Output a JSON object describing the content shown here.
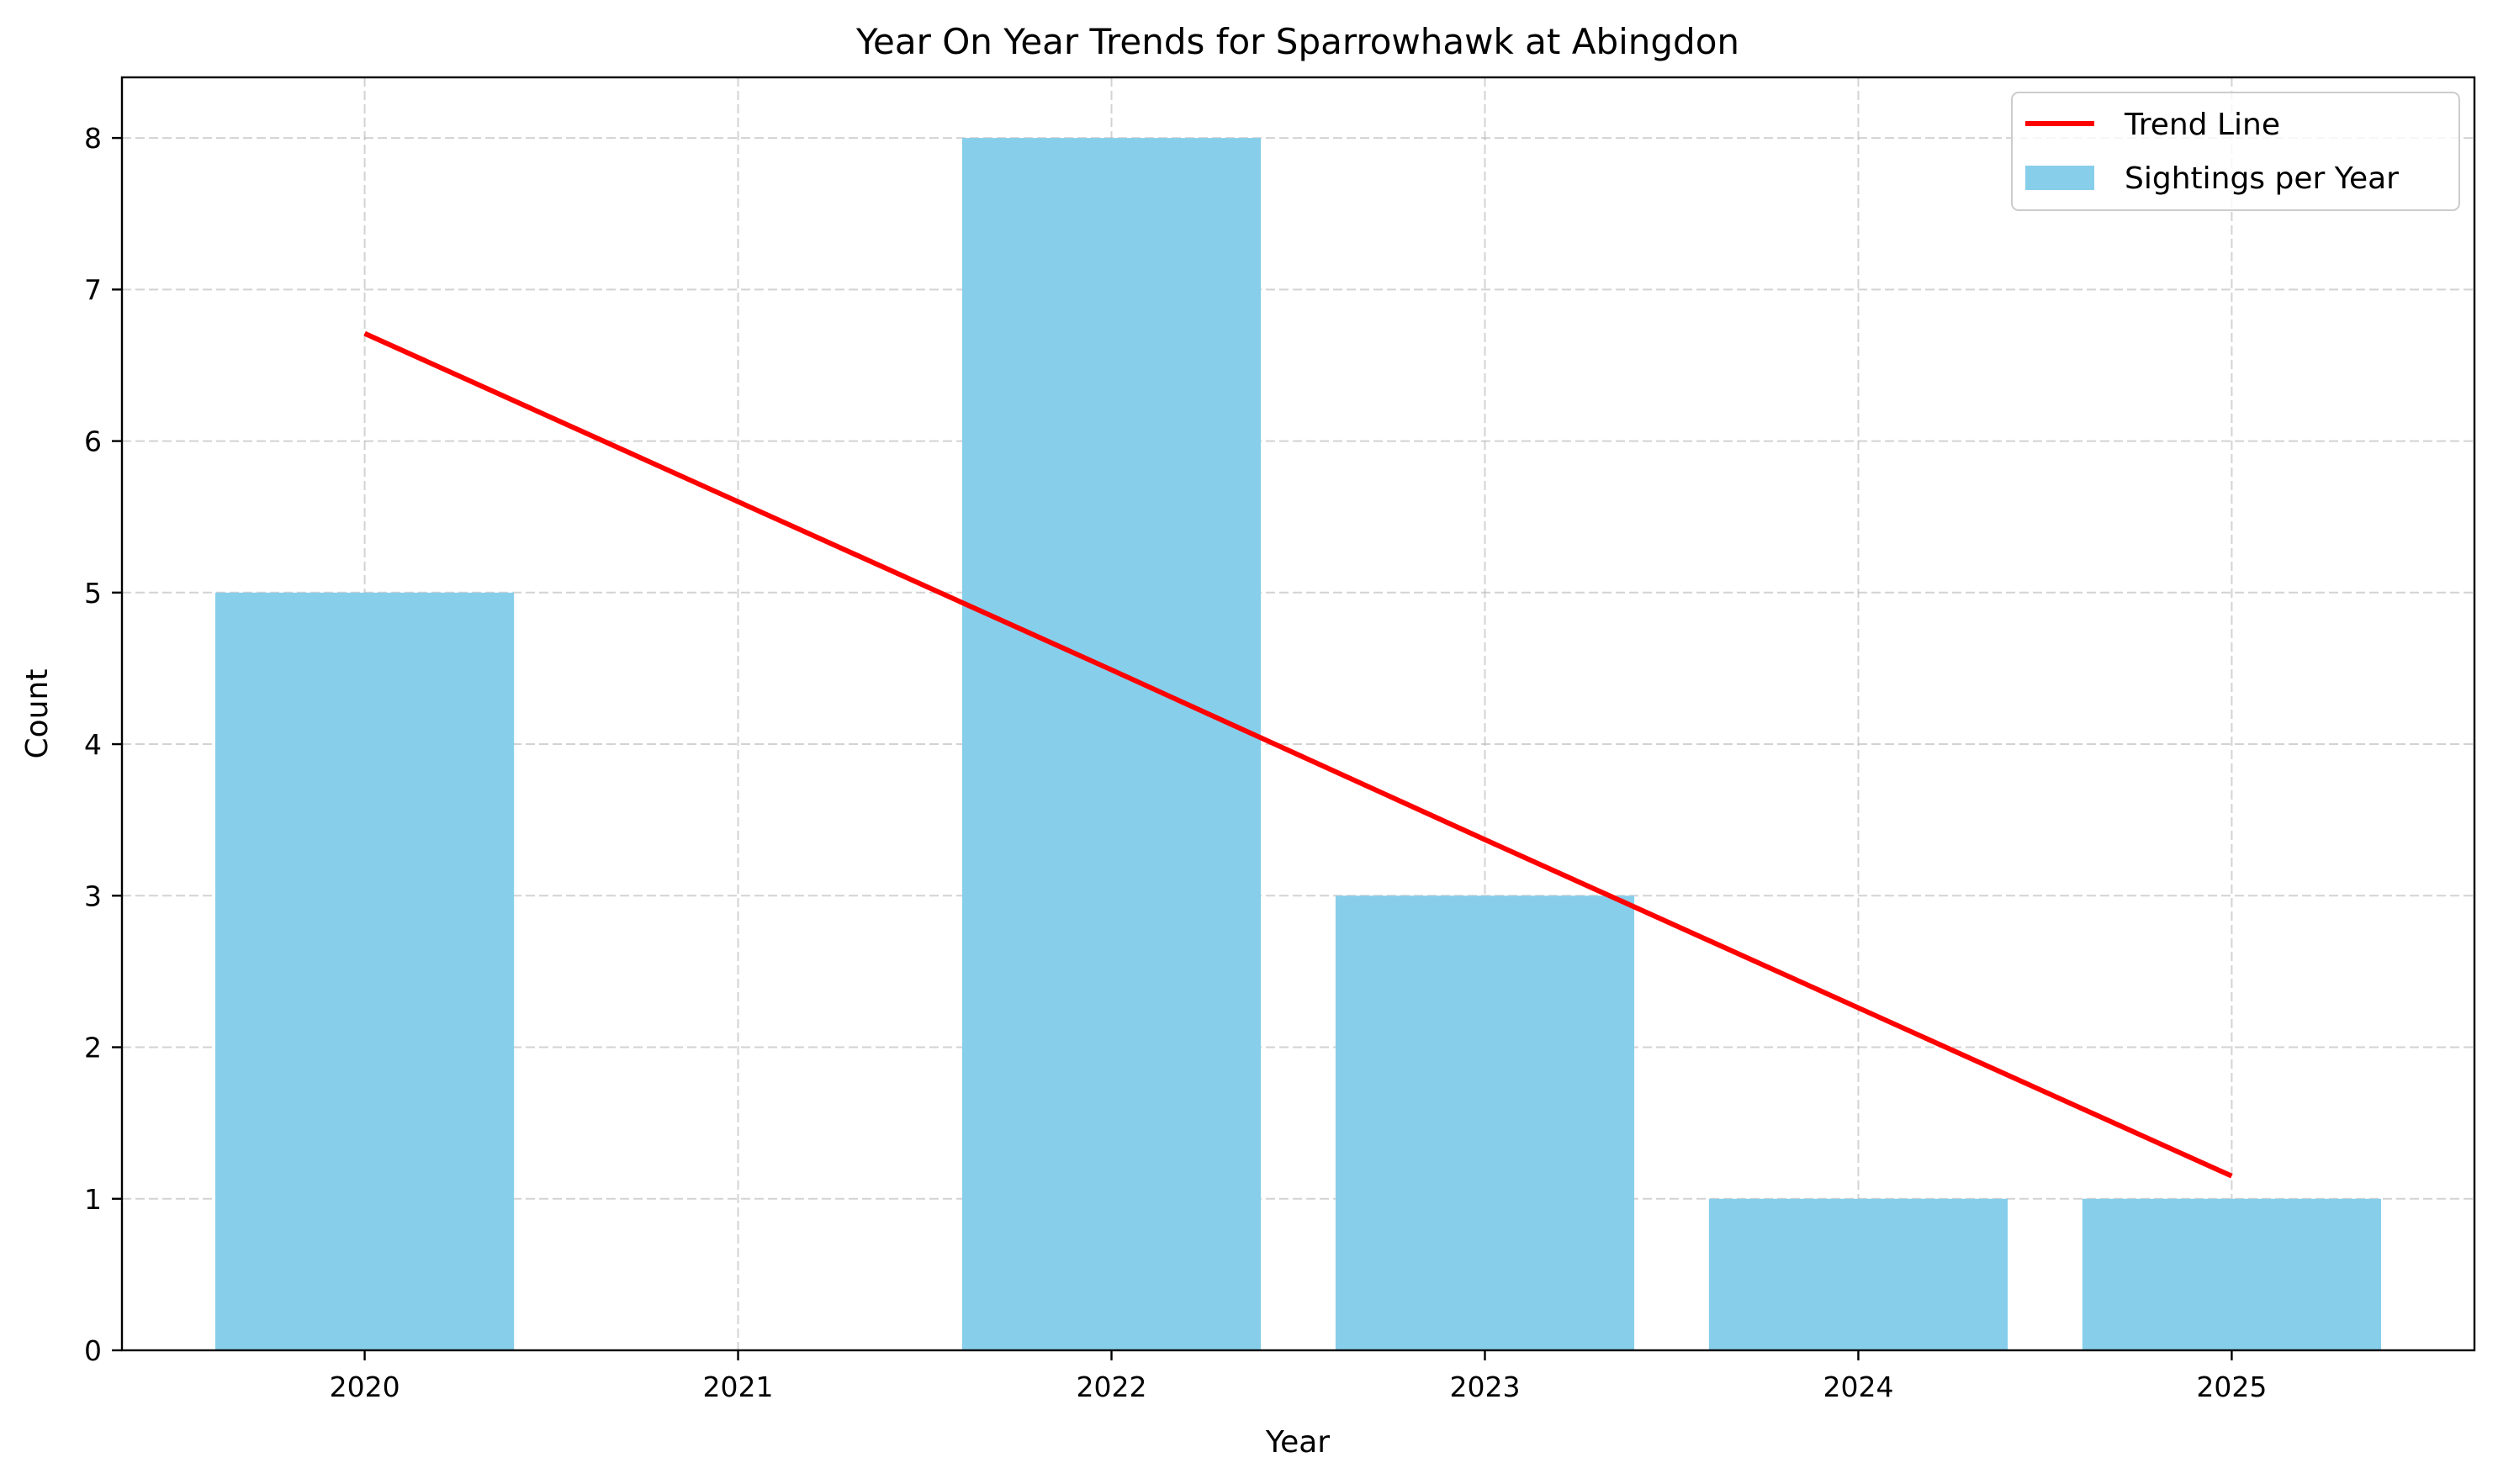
{
  "chart_data": {
    "type": "bar",
    "title": "Year On Year Trends for Sparrowhawk at Abingdon",
    "xlabel": "Year",
    "ylabel": "Count",
    "categories": [
      "2020",
      "2021",
      "2022",
      "2023",
      "2024",
      "2025"
    ],
    "series": [
      {
        "name": "Sightings per Year",
        "type": "bar",
        "color": "#87CEEB",
        "values": [
          5,
          0,
          8,
          3,
          1,
          1
        ]
      },
      {
        "name": "Trend Line",
        "type": "line",
        "color": "#FF0000",
        "values": [
          6.71,
          5.6,
          4.49,
          3.37,
          2.26,
          1.15
        ]
      }
    ],
    "yticks": [
      0,
      1,
      2,
      3,
      4,
      5,
      6,
      7,
      8
    ],
    "ylim": [
      0,
      8.4
    ],
    "xlim": [
      2019.35,
      2025.65
    ],
    "grid": true,
    "legend_position": "top-right",
    "legend_order": [
      "Trend Line",
      "Sightings per Year"
    ]
  }
}
